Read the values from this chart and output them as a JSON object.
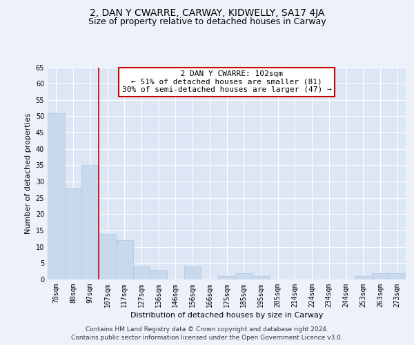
{
  "title": "2, DAN Y CWARRE, CARWAY, KIDWELLY, SA17 4JA",
  "subtitle": "Size of property relative to detached houses in Carway",
  "xlabel": "Distribution of detached houses by size in Carway",
  "ylabel": "Number of detached properties",
  "bar_labels": [
    "78sqm",
    "88sqm",
    "97sqm",
    "107sqm",
    "117sqm",
    "127sqm",
    "136sqm",
    "146sqm",
    "156sqm",
    "166sqm",
    "175sqm",
    "185sqm",
    "195sqm",
    "205sqm",
    "214sqm",
    "224sqm",
    "234sqm",
    "244sqm",
    "253sqm",
    "263sqm",
    "273sqm"
  ],
  "bar_values": [
    51,
    28,
    35,
    14,
    12,
    4,
    3,
    0,
    4,
    0,
    1,
    2,
    1,
    0,
    0,
    0,
    0,
    0,
    1,
    2,
    2
  ],
  "bar_color": "#c8d9ee",
  "bar_edge_color": "#b0c4de",
  "vline_x_index": 3,
  "vline_color": "#cc0000",
  "ylim": [
    0,
    65
  ],
  "yticks": [
    0,
    5,
    10,
    15,
    20,
    25,
    30,
    35,
    40,
    45,
    50,
    55,
    60,
    65
  ],
  "annotation_title": "2 DAN Y CWARRE: 102sqm",
  "annotation_line1": "← 51% of detached houses are smaller (81)",
  "annotation_line2": "30% of semi-detached houses are larger (47) →",
  "annotation_box_color": "#ffffff",
  "annotation_box_edge": "#cc0000",
  "footer_line1": "Contains HM Land Registry data © Crown copyright and database right 2024.",
  "footer_line2": "Contains public sector information licensed under the Open Government Licence v3.0.",
  "bg_color": "#edf2fa",
  "plot_bg_color": "#dce6f5",
  "grid_color": "#ffffff",
  "title_fontsize": 10,
  "subtitle_fontsize": 9,
  "axis_label_fontsize": 8,
  "tick_fontsize": 7,
  "annotation_fontsize": 8,
  "footer_fontsize": 6.5
}
